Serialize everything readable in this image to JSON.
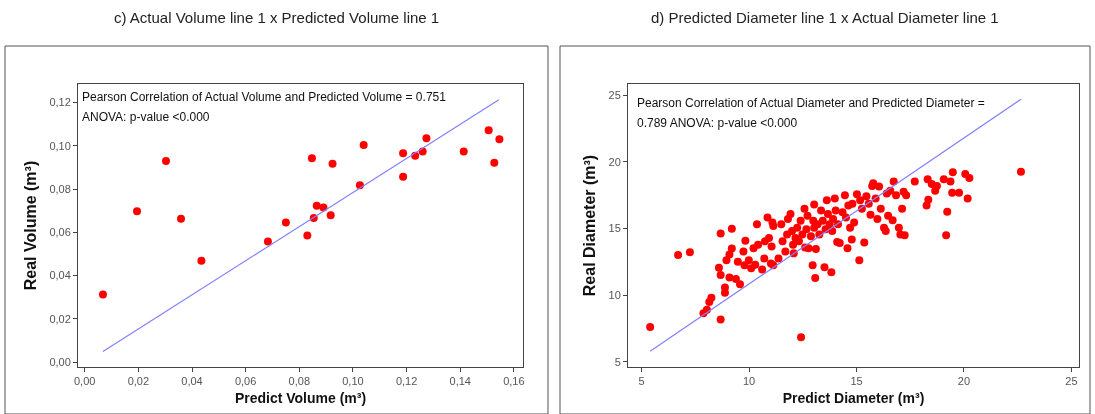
{
  "chart_data": [
    {
      "type": "scatter",
      "title": "c) Actual Volume line 1 x Predicted Volume line 1",
      "xlabel": "Predict Volume (m³)",
      "ylabel": "Real Volume (m³)",
      "annotations": [
        "Pearson Correlation of Actual Volume and Predicted Volume = 0.751",
        "ANOVA: p-value <0.000"
      ],
      "xlim": [
        -0.0025,
        0.1634
      ],
      "ylim": [
        -0.0023,
        0.1286
      ],
      "xticks": [
        {
          "value": 0,
          "label": "0,00"
        },
        {
          "value": 0.02,
          "label": "0,02"
        },
        {
          "value": 0.04,
          "label": "0,04"
        },
        {
          "value": 0.06,
          "label": "0,06"
        },
        {
          "value": 0.08,
          "label": "0,08"
        },
        {
          "value": 0.1,
          "label": "0,10"
        },
        {
          "value": 0.12,
          "label": "0,12"
        },
        {
          "value": 0.14,
          "label": "0,14"
        },
        {
          "value": 0.16,
          "label": "0,16"
        }
      ],
      "yticks": [
        {
          "value": 0,
          "label": "0,00"
        },
        {
          "value": 0.02,
          "label": "0,02"
        },
        {
          "value": 0.04,
          "label": "0,04"
        },
        {
          "value": 0.06,
          "label": "0,06"
        },
        {
          "value": 0.08,
          "label": "0,08"
        },
        {
          "value": 0.1,
          "label": "0,10"
        },
        {
          "value": 0.12,
          "label": "0,12"
        }
      ],
      "marker": "circle",
      "series": [
        {
          "color": "#ff0000",
          "x": [
            0.0068,
            0.0195,
            0.0303,
            0.0359,
            0.0435,
            0.0683,
            0.075,
            0.083,
            0.0847,
            0.0854,
            0.0865,
            0.089,
            0.0917,
            0.0924,
            0.1026,
            0.104,
            0.1187,
            0.1187,
            0.1232,
            0.126,
            0.1274,
            0.1413,
            0.1506,
            0.1527,
            0.1546
          ],
          "values": [
            0.0312,
            0.0697,
            0.093,
            0.0663,
            0.0469,
            0.0558,
            0.0645,
            0.0585,
            0.0943,
            0.0666,
            0.0723,
            0.0715,
            0.0679,
            0.0917,
            0.0818,
            0.1004,
            0.0857,
            0.0966,
            0.0954,
            0.0974,
            0.1035,
            0.0974,
            0.1072,
            0.0922,
            0.103
          ]
        },
        {
          "type": "line",
          "marker": "none",
          "color": "#8080ff",
          "x": [
            0.0068,
            0.1544
          ],
          "values": [
            0.0049,
            0.1213
          ]
        }
      ]
    },
    {
      "type": "scatter",
      "title": "d) Predicted Diameter line 1 x Actual Diameter line 1",
      "xlabel": "Predict Diameter (m³)",
      "ylabel": "Real Diameter (m³)",
      "annotations": [
        "Pearson Correlation of Actual Diameter and Predicted Diameter =",
        "0.789 ANOVA: p-value <0.000"
      ],
      "xlim": [
        4.37,
        25.35
      ],
      "ylim": [
        4.61,
        25.85
      ],
      "xticks": [
        5,
        10,
        15,
        20,
        25
      ],
      "yticks": [
        5,
        10,
        15,
        20,
        25
      ],
      "marker": "circle",
      "series": [
        {
          "color": "#ff0000",
          "x": [
            5.4,
            6.7,
            7.25,
            7.88,
            8.04,
            8.15,
            8.25,
            8.68,
            8.6,
            8.68,
            8.68,
            8.88,
            8.88,
            8.95,
            9.09,
            9.09,
            9.2,
            9.2,
            9.39,
            9.48,
            9.58,
            9.74,
            9.83,
            9.79,
            9.99,
            10.1,
            10.21,
            10.29,
            10.37,
            10.42,
            10.61,
            10.71,
            10.74,
            10.86,
            10.93,
            11.02,
            11.09,
            11.13,
            11.05,
            11.13,
            11.37,
            11.5,
            11.56,
            11.69,
            11.77,
            11.81,
            11.93,
            12.0,
            12.05,
            12.16,
            12.08,
            12.24,
            12.32,
            12.4,
            12.48,
            12.58,
            12.61,
            12.67,
            12.72,
            12.77,
            12.88,
            12.96,
            12.99,
            13.03,
            13.03,
            13.08,
            13.11,
            13.19,
            13.27,
            13.35,
            13.43,
            13.51,
            13.56,
            13.62,
            13.67,
            13.75,
            13.83,
            13.87,
            13.91,
            13.99,
            14.03,
            14.1,
            14.14,
            14.22,
            14.35,
            14.46,
            14.51,
            14.58,
            14.62,
            14.7,
            14.78,
            14.81,
            14.89,
            15.02,
            15.13,
            15.17,
            15.25,
            15.36,
            15.46,
            15.57,
            15.65,
            15.73,
            15.78,
            15.89,
            15.97,
            16.05,
            16.13,
            16.28,
            16.36,
            16.41,
            16.47,
            16.57,
            16.68,
            16.73,
            16.84,
            16.97,
            17.04,
            17.12,
            17.19,
            17.24,
            17.31,
            17.71,
            18.26,
            18.34,
            18.31,
            18.5,
            18.66,
            18.74,
            19.06,
            19.17,
            19.22,
            19.37,
            19.45,
            19.48,
            19.77,
            20.06,
            20.17,
            20.25,
            22.65,
            12.42
          ],
          "values": [
            7.62,
            13.01,
            13.22,
            8.65,
            8.9,
            9.49,
            9.8,
            8.18,
            12.06,
            14.63,
            11.52,
            10.57,
            10.19,
            12.63,
            11.32,
            13.06,
            14.99,
            13.5,
            11.21,
            12.5,
            10.83,
            13.27,
            14.09,
            12.24,
            12.63,
            12.03,
            13.52,
            12.29,
            15.32,
            13.78,
            11.93,
            12.75,
            14.04,
            15.83,
            14.29,
            12.37,
            15.45,
            15.19,
            13.65,
            12.24,
            12.75,
            15.32,
            14.04,
            13.27,
            14.55,
            15.71,
            16.09,
            14.81,
            13.78,
            14.29,
            13.14,
            15.06,
            14.04,
            15.58,
            14.55,
            16.48,
            13.58,
            14.94,
            15.96,
            13.52,
            14.42,
            12.24,
            15.58,
            15.06,
            16.81,
            11.29,
            13.47,
            15.32,
            14.55,
            16.35,
            15.58,
            12.09,
            14.94,
            17.12,
            16.09,
            15.32,
            11.73,
            14.81,
            15.71,
            17.25,
            16.35,
            13.99,
            15.32,
            13.91,
            16.22,
            17.5,
            15.83,
            13.52,
            16.73,
            15.06,
            14.17,
            16.86,
            15.45,
            17.58,
            12.63,
            17.12,
            16.48,
            13.96,
            17.43,
            16.86,
            16.04,
            18.2,
            18.4,
            17.25,
            15.71,
            18.15,
            16.48,
            15.06,
            14.81,
            17.63,
            15.96,
            17.84,
            15.63,
            18.53,
            17.5,
            15.06,
            14.55,
            16.48,
            17.76,
            14.5,
            17.5,
            18.53,
            16.73,
            17.17,
            18.71,
            18.35,
            17.84,
            18.2,
            18.71,
            14.5,
            16.27,
            18.53,
            17.68,
            19.22,
            17.68,
            19.1,
            17.25,
            18.79,
            19.27,
            6.85
          ]
        },
        {
          "type": "line",
          "marker": "none",
          "color": "#8080ff",
          "x": [
            5.4,
            22.65
          ],
          "values": [
            5.8,
            24.7
          ]
        }
      ]
    }
  ]
}
